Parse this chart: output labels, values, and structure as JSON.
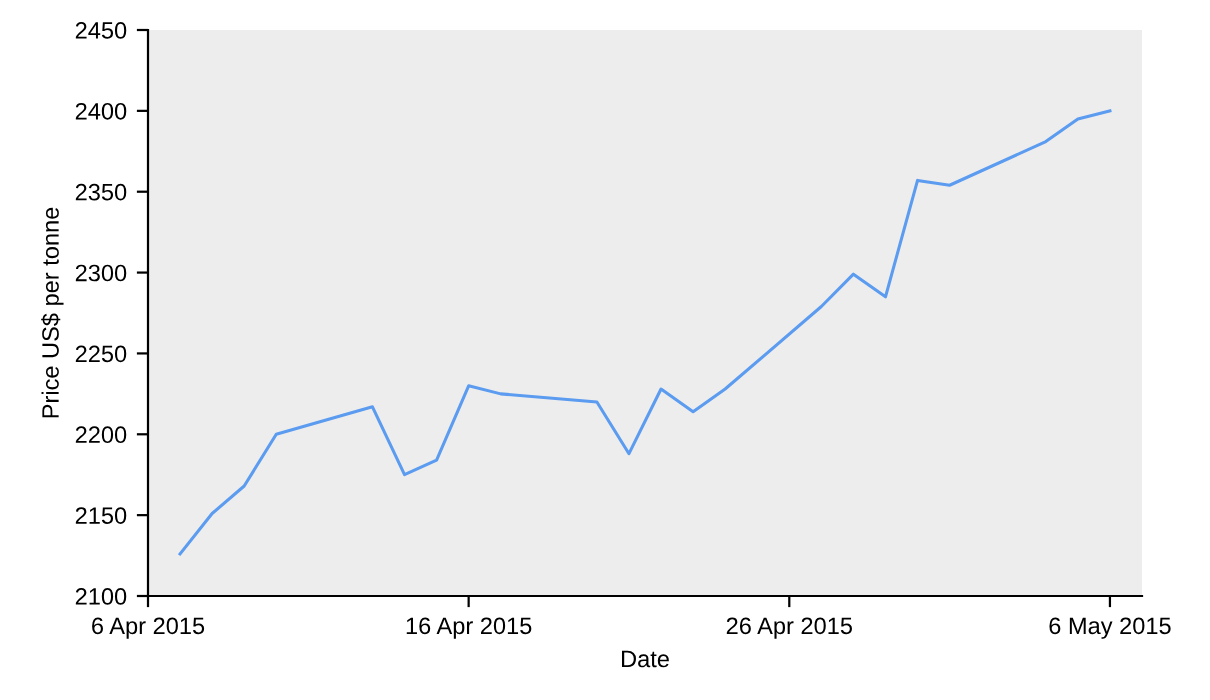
{
  "chart_data": {
    "type": "line",
    "xlabel": "Date",
    "ylabel": "Price US$ per tonne",
    "x": [
      "2015-04-07",
      "2015-04-08",
      "2015-04-09",
      "2015-04-10",
      "2015-04-13",
      "2015-04-14",
      "2015-04-15",
      "2015-04-16",
      "2015-04-17",
      "2015-04-20",
      "2015-04-21",
      "2015-04-22",
      "2015-04-23",
      "2015-04-24",
      "2015-04-27",
      "2015-04-28",
      "2015-04-29",
      "2015-04-30",
      "2015-05-01",
      "2015-05-04",
      "2015-05-05",
      "2015-05-06"
    ],
    "series": [
      {
        "color": "#5b9bf0",
        "values": [
          2126,
          2151,
          2168,
          2200,
          2217,
          2175,
          2184,
          2230,
          2225,
          2220,
          2188,
          2228,
          2214,
          2228,
          2279,
          2299,
          2285,
          2357,
          2354,
          2381,
          2395,
          2400
        ]
      }
    ],
    "xlim": [
      "2015-04-06",
      "2015-05-07"
    ],
    "xticks": [
      {
        "value": "2015-04-06",
        "label": "6 Apr 2015"
      },
      {
        "value": "2015-04-16",
        "label": "16 Apr 2015"
      },
      {
        "value": "2015-04-26",
        "label": "26 Apr 2015"
      },
      {
        "value": "2015-05-06",
        "label": "6 May 2015"
      }
    ],
    "ylim": [
      2100,
      2450
    ],
    "yticks": [
      2100,
      2150,
      2200,
      2250,
      2300,
      2350,
      2400,
      2450
    ],
    "grid": false,
    "marker": "none",
    "line_style": "solid"
  }
}
